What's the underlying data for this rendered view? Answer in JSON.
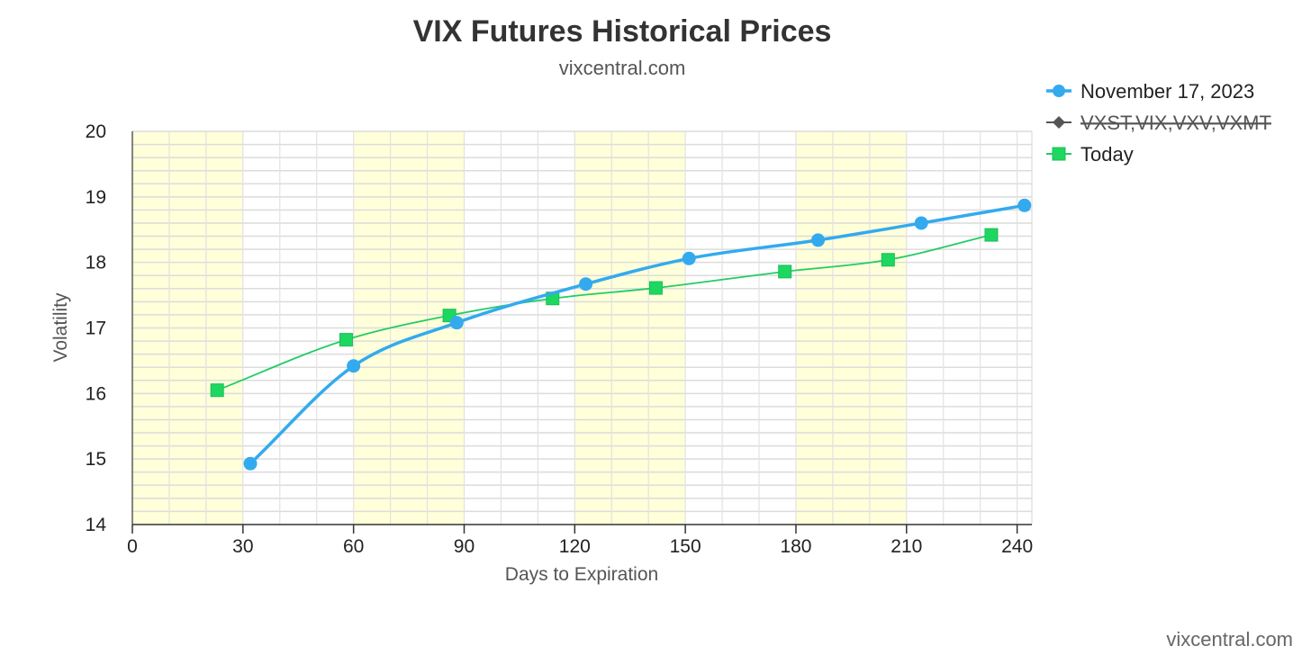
{
  "chart_data": {
    "type": "line",
    "title": "VIX Futures Historical Prices",
    "subtitle": "vixcentral.com",
    "xlabel": "Days to Expiration",
    "ylabel": "Volatility",
    "xlim": [
      0,
      244
    ],
    "ylim": [
      14,
      20
    ],
    "x_ticks": [
      0,
      30,
      60,
      90,
      120,
      150,
      180,
      210,
      240
    ],
    "y_ticks": [
      14,
      15,
      16,
      17,
      18,
      19,
      20
    ],
    "grid": true,
    "x_bands": [
      [
        0,
        30
      ],
      [
        60,
        90
      ],
      [
        120,
        150
      ],
      [
        180,
        210
      ]
    ],
    "legend_position": "top-right",
    "series": [
      {
        "name": "November 17, 2023",
        "color": "#33aaee",
        "marker": "circle",
        "smooth": true,
        "visible": true,
        "x": [
          32,
          60,
          88,
          123,
          151,
          186,
          214,
          242
        ],
        "y": [
          14.93,
          16.42,
          17.08,
          17.67,
          18.06,
          18.34,
          18.6,
          18.87
        ]
      },
      {
        "name": "VXST,VIX,VXV,VXMT",
        "color": "#555555",
        "marker": "diamond",
        "visible": false,
        "x": [],
        "y": []
      },
      {
        "name": "Today",
        "color": "#22cc66",
        "marker": "square",
        "smooth": true,
        "visible": true,
        "x": [
          23,
          58,
          86,
          114,
          142,
          177,
          205,
          233
        ],
        "y": [
          16.05,
          16.82,
          17.19,
          17.45,
          17.61,
          17.86,
          18.04,
          18.42
        ]
      }
    ]
  },
  "credit": "vixcentral.com"
}
